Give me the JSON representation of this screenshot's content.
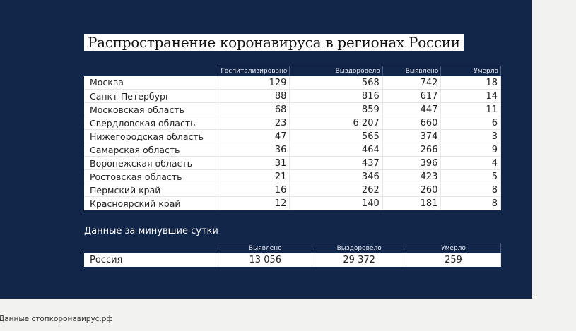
{
  "title": "Распространение коронавируса в регионах России",
  "regions_table": {
    "columns": [
      "",
      "Госпитализировано",
      "Выздоровело",
      "Выявлено",
      "Умерло"
    ],
    "rows": [
      {
        "region": "Москва",
        "hospitalized": "129",
        "recovered": "568",
        "detected": "742",
        "died": "18"
      },
      {
        "region": "Санкт-Петербург",
        "hospitalized": "88",
        "recovered": "816",
        "detected": "617",
        "died": "14"
      },
      {
        "region": "Московская область",
        "hospitalized": "68",
        "recovered": "859",
        "detected": "447",
        "died": "11"
      },
      {
        "region": "Свердловская область",
        "hospitalized": "23",
        "recovered": "6 207",
        "detected": "660",
        "died": "6"
      },
      {
        "region": "Нижегородская область",
        "hospitalized": "47",
        "recovered": "565",
        "detected": "374",
        "died": "3"
      },
      {
        "region": "Самарская область",
        "hospitalized": "36",
        "recovered": "464",
        "detected": "266",
        "died": "9"
      },
      {
        "region": "Воронежская область",
        "hospitalized": "31",
        "recovered": "437",
        "detected": "396",
        "died": "4"
      },
      {
        "region": "Ростовская область",
        "hospitalized": "21",
        "recovered": "346",
        "detected": "423",
        "died": "5"
      },
      {
        "region": "Пермский край",
        "hospitalized": "16",
        "recovered": "262",
        "detected": "260",
        "died": "8"
      },
      {
        "region": "Красноярский край",
        "hospitalized": "12",
        "recovered": "140",
        "detected": "181",
        "died": "8"
      }
    ]
  },
  "daily": {
    "title": "Данные за минувшие сутки",
    "columns": [
      "",
      "Выявлено",
      "Выздоровело",
      "Умерло"
    ],
    "row": {
      "region": "Россия",
      "detected": "13 056",
      "recovered": "29 372",
      "died": "259"
    }
  },
  "footer": "Данные стопкоронавирус.рф",
  "colors": {
    "panel_bg": "#12264a",
    "page_bg": "#f2f2f1",
    "cell_bg": "#ffffff"
  }
}
